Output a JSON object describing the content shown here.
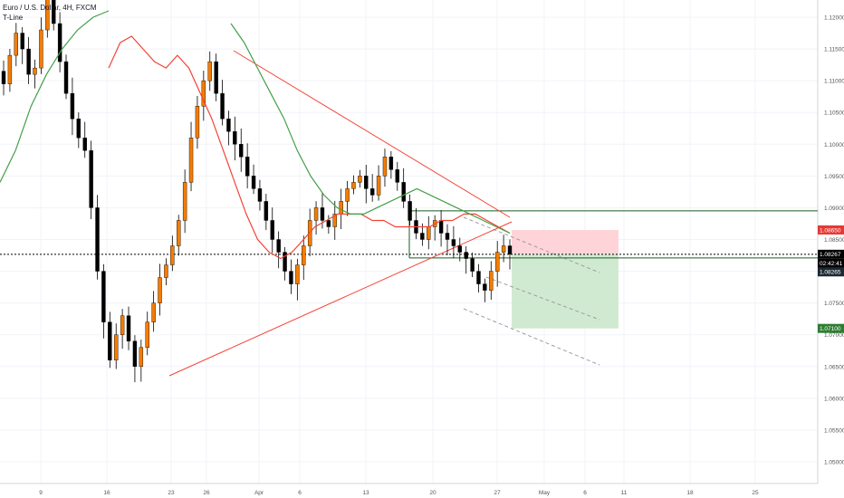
{
  "header": {
    "symbol": "Euro / U.S. Dollar, 4H, FXCM",
    "indicator": "T-Line"
  },
  "colors": {
    "up_candle": "#f57c00",
    "down_candle": "#000000",
    "ma_red": "#f44336",
    "ma_green": "#43a047",
    "trend_line": "#f44336",
    "stop_zone": "#ffcdd2",
    "target_zone": "#c8e6c9",
    "dashed_channel": "#9e9e9e"
  },
  "chart_data": {
    "type": "candlestick",
    "symbol": "Euro / U.S. Dollar",
    "timeframe": "4H",
    "source": "FXCM",
    "indicator": "T-Line",
    "ylim": [
      1.0479,
      1.1233
    ],
    "y_ticks": [
      "1.12000",
      "1.11500",
      "1.11000",
      "1.10500",
      "1.10000",
      "1.09500",
      "1.09000",
      "1.08500",
      "1.08000",
      "1.07500",
      "1.07000",
      "1.06500",
      "1.06000",
      "1.05500",
      "1.05000"
    ],
    "x_ticks": [
      "9",
      "16",
      "23",
      "26",
      "Apr",
      "6",
      "13",
      "20",
      "27",
      "May",
      "6",
      "11",
      "18",
      "25"
    ],
    "price_labels": {
      "stop": "1.08650",
      "current": "1.08267",
      "countdown": "02:42:41",
      "level": "1.08265",
      "target": "1.07100"
    },
    "horizontal_levels": [
      1.0895,
      1.0821
    ],
    "triangle": {
      "apex_left": {
        "x": "Mar 29",
        "y": 1.1146
      },
      "apex_right": {
        "x": "Apr 29",
        "y": 1.0875
      },
      "bottom": {
        "x": "Mar 23",
        "y": 1.0636
      }
    },
    "position": {
      "entry": 1.08267,
      "stop": 1.0865,
      "target": 1.071
    },
    "closes": [
      1.1095,
      1.114,
      1.1175,
      1.115,
      1.111,
      1.112,
      1.118,
      1.123,
      1.119,
      1.113,
      1.108,
      1.104,
      1.101,
      1.099,
      1.09,
      1.08,
      1.072,
      1.066,
      1.07,
      1.073,
      1.069,
      1.065,
      1.068,
      1.072,
      1.075,
      1.079,
      1.081,
      1.084,
      1.088,
      1.094,
      1.101,
      1.106,
      1.11,
      1.113,
      1.108,
      1.104,
      1.102,
      1.1,
      1.098,
      1.095,
      1.093,
      1.091,
      1.088,
      1.085,
      1.083,
      1.08,
      1.078,
      1.081,
      1.084,
      1.088,
      1.09,
      1.088,
      1.087,
      1.089,
      1.091,
      1.093,
      1.094,
      1.095,
      1.093,
      1.092,
      1.095,
      1.098,
      1.096,
      1.094,
      1.091,
      1.088,
      1.086,
      1.085,
      1.087,
      1.088,
      1.086,
      1.085,
      1.084,
      1.083,
      1.082,
      1.08,
      1.078,
      1.077,
      1.08,
      1.083,
      1.084,
      1.0827
    ],
    "t_line": [
      1.112,
      1.116,
      1.117,
      1.115,
      1.113,
      1.112,
      1.114,
      1.112,
      1.108,
      1.104,
      1.099,
      1.094,
      1.089,
      1.085,
      1.083,
      1.082,
      1.083,
      1.085,
      1.087,
      1.088,
      1.089,
      1.089,
      1.089,
      1.088,
      1.088,
      1.087,
      1.087,
      1.087,
      1.087,
      1.088,
      1.088,
      1.089,
      1.089,
      1.088,
      1.087,
      1.086
    ],
    "ma_slow": [
      1.094,
      1.099,
      1.106,
      1.111,
      1.115,
      1.118,
      1.12,
      1.121,
      1.119,
      1.116,
      1.112,
      1.108,
      1.104,
      1.099,
      1.095,
      1.092,
      1.09,
      1.089,
      1.089,
      1.09,
      1.091,
      1.092,
      1.093,
      1.092,
      1.091,
      1.09,
      1.089,
      1.088,
      1.087,
      1.086
    ]
  }
}
